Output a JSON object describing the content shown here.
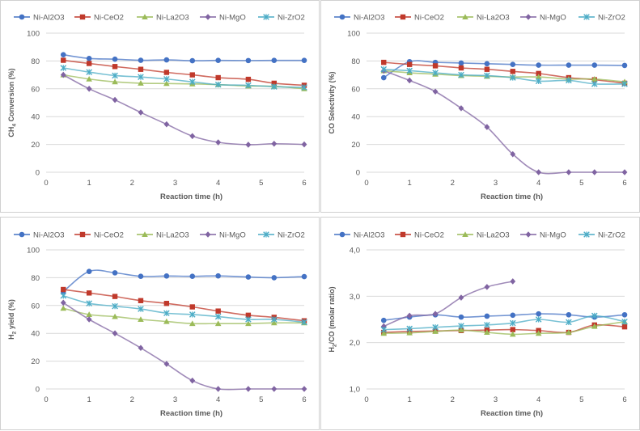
{
  "series_styles": [
    {
      "name": "Ni-Al2O3",
      "color": "#4472c4",
      "marker": "circle"
    },
    {
      "name": "Ni-CeO2",
      "color": "#c0392b",
      "marker": "square"
    },
    {
      "name": "Ni-La2O3",
      "color": "#9bbb59",
      "marker": "triangle"
    },
    {
      "name": "Ni-MgO",
      "color": "#8064a2",
      "marker": "diamond"
    },
    {
      "name": "Ni-ZrO2",
      "color": "#4bacc6",
      "marker": "star"
    }
  ],
  "chart_data": [
    {
      "type": "line",
      "xlabel": "Reaction time (h)",
      "ylabel_main": "CH",
      "ylabel_sub": "4",
      "ylabel_rest": " Conversion (%)",
      "xlim": [
        0,
        6
      ],
      "ylim": [
        0,
        100
      ],
      "xticks": [
        "0",
        "1",
        "2",
        "3",
        "4",
        "5",
        "6"
      ],
      "yticks": [
        "0",
        "20",
        "40",
        "60",
        "80",
        "100"
      ],
      "x": [
        0.4,
        1.0,
        1.6,
        2.2,
        2.8,
        3.4,
        4.0,
        4.7,
        5.3,
        6.0
      ],
      "series": [
        {
          "name": "Ni-Al2O3",
          "values": [
            84.5,
            81.8,
            81.3,
            80.5,
            80.8,
            80.2,
            80.4,
            80.3,
            80.4,
            80.4
          ]
        },
        {
          "name": "Ni-CeO2",
          "values": [
            80.5,
            78.2,
            76.0,
            74.0,
            71.8,
            70.0,
            68.0,
            66.8,
            64.0,
            62.5
          ]
        },
        {
          "name": "Ni-La2O3",
          "values": [
            70.0,
            67.0,
            65.0,
            64.0,
            63.8,
            63.5,
            63.0,
            62.0,
            61.8,
            60.0
          ]
        },
        {
          "name": "Ni-MgO",
          "values": [
            70.0,
            60.0,
            52.0,
            43.0,
            34.5,
            26.0,
            21.5,
            19.8,
            20.5,
            20.0
          ]
        },
        {
          "name": "Ni-ZrO2",
          "values": [
            75.0,
            72.0,
            69.5,
            68.5,
            67.0,
            65.0,
            63.0,
            62.5,
            61.5,
            61.0
          ]
        }
      ]
    },
    {
      "type": "line",
      "xlabel": "Reaction time (h)",
      "ylabel_main": "CO Selectivity (%)",
      "ylabel_sub": "",
      "ylabel_rest": "",
      "xlim": [
        0,
        6
      ],
      "ylim": [
        0,
        100
      ],
      "xticks": [
        "0",
        "1",
        "2",
        "3",
        "4",
        "5",
        "6"
      ],
      "yticks": [
        "0",
        "20",
        "40",
        "60",
        "80",
        "100"
      ],
      "x": [
        0.4,
        1.0,
        1.6,
        2.2,
        2.8,
        3.4,
        4.0,
        4.7,
        5.3,
        6.0
      ],
      "series": [
        {
          "name": "Ni-Al2O3",
          "values": [
            68.0,
            79.5,
            79.0,
            78.5,
            78.0,
            77.5,
            77.0,
            77.0,
            77.0,
            76.8
          ]
        },
        {
          "name": "Ni-CeO2",
          "values": [
            79.0,
            77.5,
            76.5,
            75.0,
            74.0,
            72.5,
            71.0,
            68.0,
            66.5,
            64.0
          ]
        },
        {
          "name": "Ni-La2O3",
          "values": [
            73.0,
            71.5,
            70.5,
            69.5,
            69.0,
            68.5,
            68.5,
            67.0,
            67.0,
            65.0
          ]
        },
        {
          "name": "Ni-MgO",
          "values": [
            73.0,
            66.0,
            58.0,
            46.0,
            32.5,
            13.0,
            0.0,
            0.0,
            0.0,
            0.0
          ]
        },
        {
          "name": "Ni-ZrO2",
          "values": [
            74.0,
            73.0,
            71.5,
            70.0,
            69.5,
            68.0,
            65.5,
            66.0,
            63.5,
            63.5
          ]
        }
      ]
    },
    {
      "type": "line",
      "xlabel": "Reaction time (h)",
      "ylabel_main": "H",
      "ylabel_sub": "2",
      "ylabel_rest": " yield (%)",
      "xlim": [
        0,
        6
      ],
      "ylim": [
        0,
        100
      ],
      "xticks": [
        "0",
        "1",
        "2",
        "3",
        "4",
        "5",
        "6"
      ],
      "yticks": [
        "0",
        "20",
        "40",
        "60",
        "80",
        "100"
      ],
      "x": [
        0.4,
        1.0,
        1.6,
        2.2,
        2.8,
        3.4,
        4.0,
        4.7,
        5.3,
        6.0
      ],
      "series": [
        {
          "name": "Ni-Al2O3",
          "values": [
            70.0,
            84.5,
            83.5,
            81.0,
            81.2,
            81.0,
            81.3,
            80.5,
            80.0,
            80.8
          ]
        },
        {
          "name": "Ni-CeO2",
          "values": [
            71.5,
            69.0,
            66.5,
            63.5,
            61.5,
            59.0,
            56.0,
            53.0,
            51.5,
            49.0
          ]
        },
        {
          "name": "Ni-La2O3",
          "values": [
            58.0,
            53.5,
            52.0,
            50.0,
            48.5,
            47.0,
            47.0,
            47.0,
            47.5,
            47.5
          ]
        },
        {
          "name": "Ni-MgO",
          "values": [
            62.0,
            50.0,
            40.0,
            29.5,
            18.0,
            6.0,
            0.0,
            0.0,
            0.0,
            0.0
          ]
        },
        {
          "name": "Ni-ZrO2",
          "values": [
            67.0,
            61.5,
            59.5,
            57.5,
            54.5,
            53.5,
            52.0,
            50.0,
            50.0,
            48.0
          ]
        }
      ]
    },
    {
      "type": "line",
      "xlabel": "Reaction time (h)",
      "ylabel_main": "H",
      "ylabel_sub": "2",
      "ylabel_rest": "/CO (molar ratio)",
      "xlim": [
        0,
        6
      ],
      "ylim": [
        1.0,
        4.0
      ],
      "xticks": [
        "0",
        "1",
        "2",
        "3",
        "4",
        "5",
        "6"
      ],
      "yticks": [
        "1,0",
        "2,0",
        "3,0",
        "4,0"
      ],
      "x": [
        0.4,
        1.0,
        1.6,
        2.2,
        2.8,
        3.4,
        4.0,
        4.7,
        5.3,
        6.0
      ],
      "series": [
        {
          "name": "Ni-Al2O3",
          "x": [
            0.4,
            1.0,
            1.6,
            2.2,
            2.8,
            3.4,
            4.0,
            4.7,
            5.3,
            6.0
          ],
          "values": [
            2.48,
            2.55,
            2.6,
            2.55,
            2.57,
            2.59,
            2.62,
            2.6,
            2.55,
            2.6
          ]
        },
        {
          "name": "Ni-CeO2",
          "x": [
            0.4,
            1.0,
            1.6,
            2.2,
            2.8,
            3.4,
            4.0,
            4.7,
            5.3,
            6.0
          ],
          "values": [
            2.22,
            2.24,
            2.25,
            2.26,
            2.27,
            2.28,
            2.26,
            2.22,
            2.38,
            2.34
          ]
        },
        {
          "name": "Ni-La2O3",
          "x": [
            0.4,
            1.0,
            1.6,
            2.2,
            2.8,
            3.4,
            4.0,
            4.7,
            5.3,
            6.0
          ],
          "values": [
            2.2,
            2.21,
            2.24,
            2.27,
            2.22,
            2.18,
            2.2,
            2.22,
            2.35,
            2.45
          ]
        },
        {
          "name": "Ni-MgO",
          "x": [
            0.4,
            1.0,
            1.6,
            2.2,
            2.8,
            3.4
          ],
          "values": [
            2.35,
            2.58,
            2.62,
            2.97,
            3.2,
            3.32
          ]
        },
        {
          "name": "Ni-ZrO2",
          "x": [
            0.4,
            1.0,
            1.6,
            2.2,
            2.8,
            3.4,
            4.0,
            4.7,
            5.3,
            6.0
          ],
          "values": [
            2.28,
            2.3,
            2.33,
            2.36,
            2.38,
            2.42,
            2.5,
            2.44,
            2.58,
            2.45
          ]
        }
      ]
    }
  ]
}
